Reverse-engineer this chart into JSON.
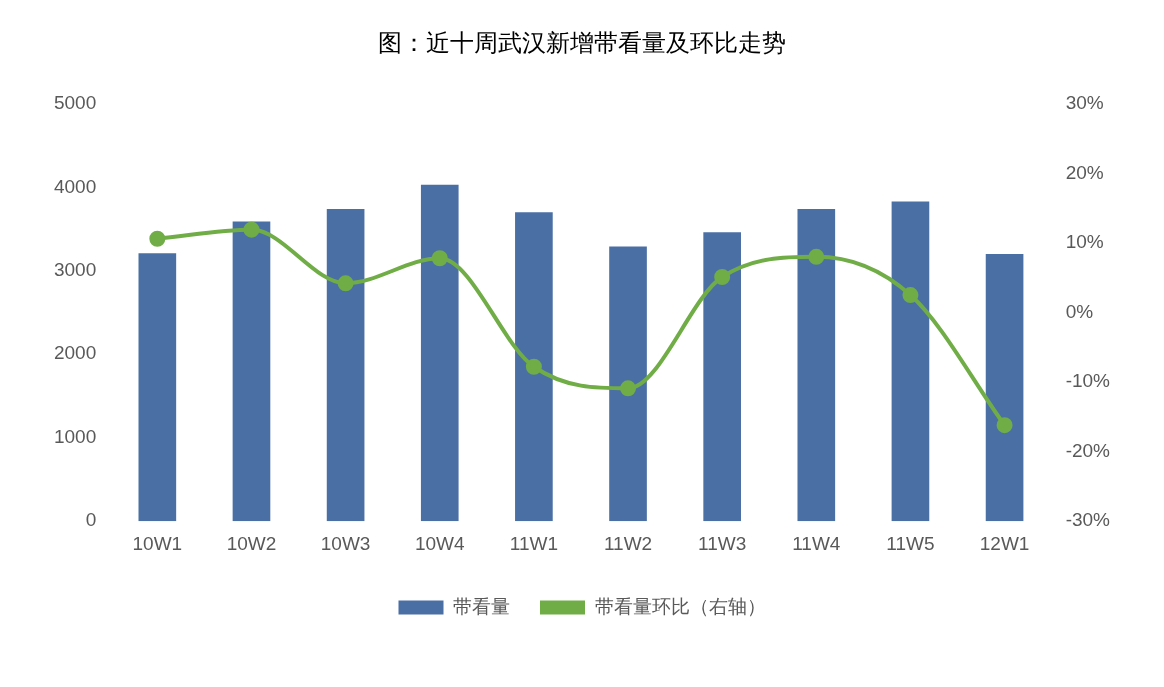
{
  "chart_data": {
    "type": "bar",
    "title": "图：近十周武汉新增带看量及环比走势",
    "categories": [
      "10W1",
      "10W2",
      "10W3",
      "10W4",
      "11W1",
      "11W2",
      "11W3",
      "11W4",
      "11W5",
      "12W1"
    ],
    "series": [
      {
        "name": "带看量",
        "color": "#4a6fa5",
        "values": [
          3210,
          3590,
          3740,
          4030,
          3700,
          3290,
          3460,
          3740,
          3830,
          3200
        ]
      },
      {
        "name": "带看量环比（右轴）",
        "type": "line",
        "axis": "y2",
        "color": "#70ad47",
        "values": [
          10.6,
          11.9,
          4.2,
          7.8,
          -7.8,
          -10.9,
          5.1,
          8.0,
          2.5,
          -16.2
        ]
      }
    ],
    "ylim": [
      0,
      5000
    ],
    "yticks": [
      0,
      1000,
      2000,
      3000,
      4000,
      5000
    ],
    "y2lim": [
      -30,
      30
    ],
    "y2ticks": [
      {
        "value": -30,
        "label": "-30%"
      },
      {
        "value": -20,
        "label": "-20%"
      },
      {
        "value": -10,
        "label": "-10%"
      },
      {
        "value": 0,
        "label": "0%"
      },
      {
        "value": 10,
        "label": "10%"
      },
      {
        "value": 20,
        "label": "20%"
      },
      {
        "value": 30,
        "label": "30%"
      }
    ],
    "grid": false,
    "legend": "bottom",
    "marker": "circle"
  }
}
